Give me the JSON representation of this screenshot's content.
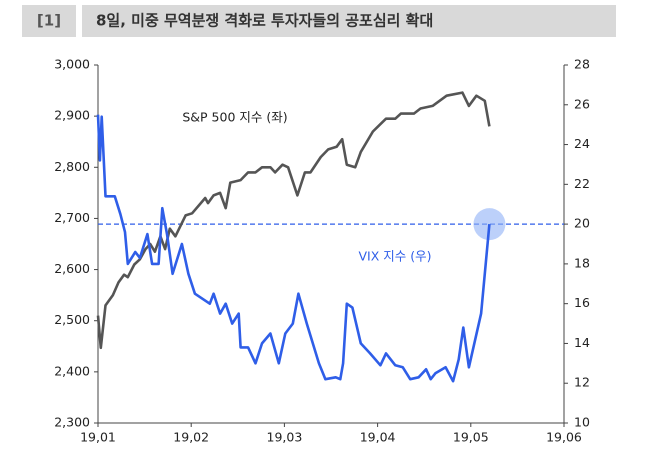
{
  "header": {
    "number": "[1]",
    "title": "8일, 미중 무역분쟁 격화로 투자자들의 공포심리 확대"
  },
  "chart_data": {
    "type": "line",
    "xlim": [
      1,
      6
    ],
    "xticks": [
      {
        "value": 1,
        "label": "19,01"
      },
      {
        "value": 2,
        "label": "19,02"
      },
      {
        "value": 3,
        "label": "19,03"
      },
      {
        "value": 4,
        "label": "19,04"
      },
      {
        "value": 5,
        "label": "19,05"
      },
      {
        "value": 6,
        "label": "19,06"
      }
    ],
    "ylim": [
      2300,
      3000
    ],
    "yticks": [
      {
        "value": 2300,
        "label": "2,300"
      },
      {
        "value": 2400,
        "label": "2,400"
      },
      {
        "value": 2500,
        "label": "2,500"
      },
      {
        "value": 2600,
        "label": "2,600"
      },
      {
        "value": 2700,
        "label": "2,700"
      },
      {
        "value": 2800,
        "label": "2,800"
      },
      {
        "value": 2900,
        "label": "2,900"
      },
      {
        "value": 3000,
        "label": "3,000"
      }
    ],
    "y2lim": [
      10,
      28
    ],
    "y2ticks": [
      10,
      12,
      14,
      16,
      18,
      20,
      22,
      24,
      26,
      28
    ],
    "y2_reference": 20,
    "annotations": [
      "S&P 500 지수 (좌)",
      "VIX 지수 (우)"
    ],
    "series": [
      {
        "name": "S&P 500",
        "color": "#555555",
        "axis": "y",
        "x": [
          1.0,
          1.03,
          1.08,
          1.16,
          1.22,
          1.28,
          1.32,
          1.39,
          1.45,
          1.51,
          1.56,
          1.61,
          1.67,
          1.72,
          1.77,
          1.83,
          1.94,
          2.01,
          2.15,
          2.18,
          2.24,
          2.31,
          2.37,
          2.42,
          2.53,
          2.61,
          2.69,
          2.76,
          2.85,
          2.9,
          2.98,
          3.04,
          3.14,
          3.22,
          3.28,
          3.39,
          3.47,
          3.56,
          3.62,
          3.67,
          3.76,
          3.82,
          3.95,
          4.09,
          4.19,
          4.25,
          4.39,
          4.46,
          4.59,
          4.74,
          4.91,
          4.98,
          5.06,
          5.15,
          5.2
        ],
        "values": [
          2510,
          2447,
          2530,
          2550,
          2575,
          2590,
          2585,
          2610,
          2620,
          2640,
          2650,
          2635,
          2665,
          2640,
          2680,
          2665,
          2706,
          2710,
          2740,
          2730,
          2745,
          2750,
          2720,
          2770,
          2775,
          2790,
          2790,
          2800,
          2800,
          2790,
          2805,
          2800,
          2745,
          2790,
          2790,
          2820,
          2835,
          2840,
          2855,
          2805,
          2800,
          2830,
          2870,
          2895,
          2895,
          2905,
          2905,
          2915,
          2920,
          2940,
          2946,
          2920,
          2940,
          2930,
          2880
        ]
      },
      {
        "name": "VIX",
        "color": "#2f5ee8",
        "axis": "y2",
        "x": [
          1.0,
          1.02,
          1.04,
          1.08,
          1.18,
          1.24,
          1.29,
          1.32,
          1.4,
          1.45,
          1.53,
          1.58,
          1.65,
          1.69,
          1.74,
          1.8,
          1.9,
          1.97,
          2.04,
          2.2,
          2.24,
          2.31,
          2.37,
          2.44,
          2.51,
          2.53,
          2.61,
          2.69,
          2.76,
          2.85,
          2.94,
          3.01,
          3.09,
          3.15,
          3.24,
          3.37,
          3.44,
          3.55,
          3.6,
          3.63,
          3.67,
          3.73,
          3.82,
          3.92,
          4.03,
          4.09,
          4.19,
          4.27,
          4.35,
          4.44,
          4.52,
          4.57,
          4.62,
          4.73,
          4.81,
          4.87,
          4.92,
          4.98,
          5.11,
          5.2
        ],
        "values": [
          25.5,
          23.2,
          25.4,
          21.4,
          21.4,
          20.5,
          19.6,
          18.0,
          18.6,
          18.3,
          19.5,
          18.0,
          18.0,
          20.8,
          19.5,
          17.5,
          19.0,
          17.5,
          16.5,
          16.0,
          16.5,
          15.5,
          16.0,
          15.0,
          15.5,
          13.8,
          13.8,
          13.0,
          14.0,
          14.5,
          13.0,
          14.5,
          15.0,
          16.5,
          15.0,
          13.0,
          12.2,
          12.3,
          12.2,
          13.0,
          16.0,
          15.8,
          14.0,
          13.5,
          12.9,
          13.5,
          12.9,
          12.8,
          12.2,
          12.3,
          12.7,
          12.2,
          12.5,
          12.8,
          12.1,
          13.2,
          14.8,
          12.8,
          15.5,
          20.0
        ]
      }
    ]
  }
}
